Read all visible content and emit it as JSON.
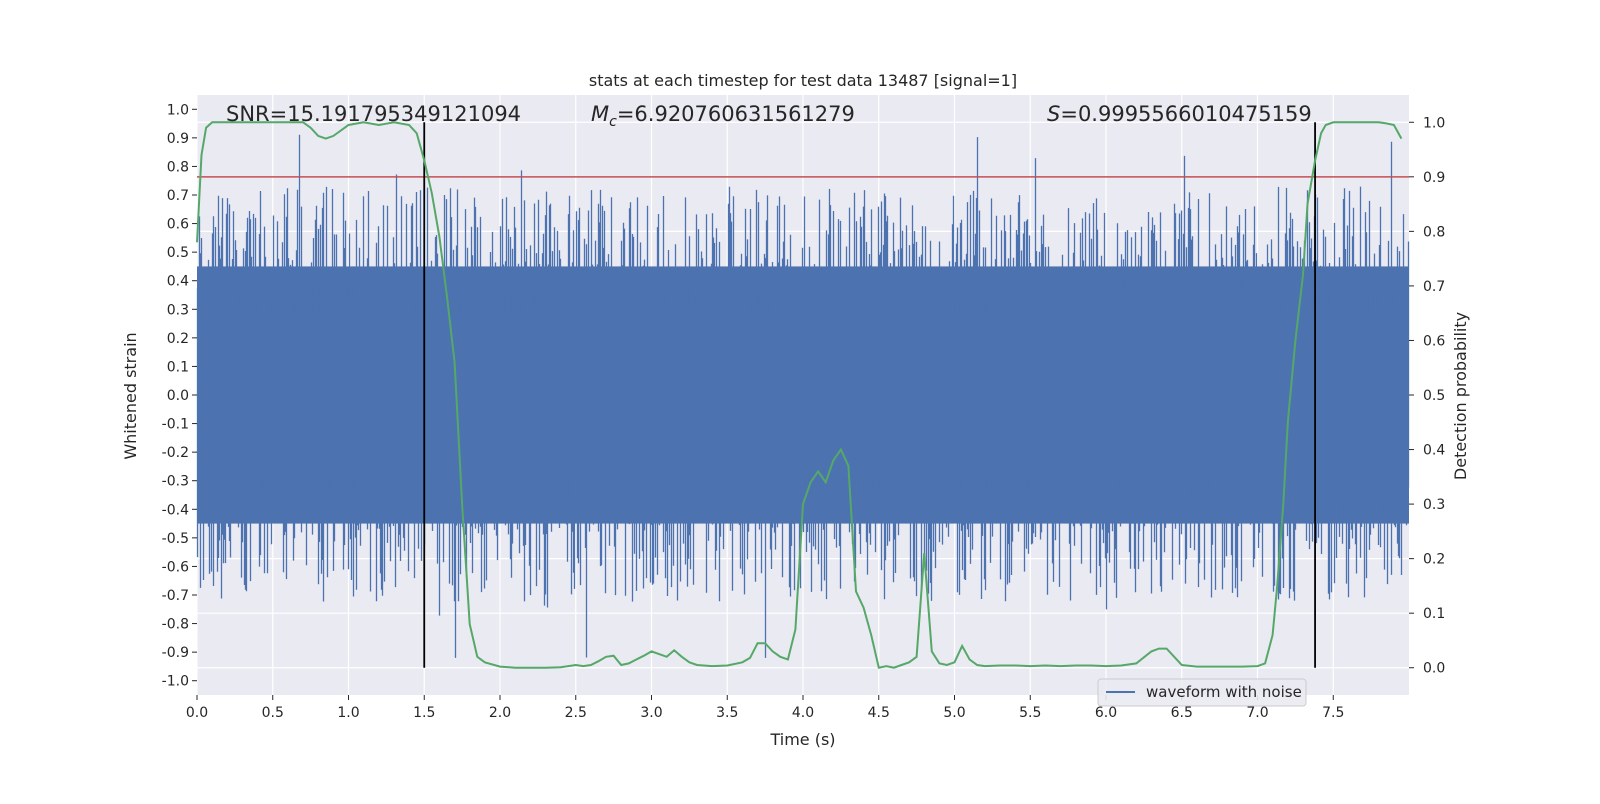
{
  "chart_data": {
    "type": "line",
    "title": "stats at each timestep for test data 13487 [signal=1]",
    "xlabel": "Time (s)",
    "ylabel": "Whitened strain",
    "y2label": "Detection probability",
    "xlim": [
      0.0,
      8.0
    ],
    "ylim": [
      -1.05,
      1.05
    ],
    "y2lim": [
      -0.05,
      1.05
    ],
    "xticks": [
      0.0,
      0.5,
      1.0,
      1.5,
      2.0,
      2.5,
      3.0,
      3.5,
      4.0,
      4.5,
      5.0,
      5.5,
      6.0,
      6.5,
      7.0,
      7.5
    ],
    "xtick_labels": [
      "0.0",
      "0.5",
      "1.0",
      "1.5",
      "2.0",
      "2.5",
      "3.0",
      "3.5",
      "4.0",
      "4.5",
      "5.0",
      "5.5",
      "6.0",
      "6.5",
      "7.0",
      "7.5"
    ],
    "yticks": [
      1.0,
      0.9,
      0.8,
      0.7,
      0.6,
      0.5,
      0.4,
      0.3,
      0.2,
      0.1,
      0.0,
      -0.1,
      -0.2,
      -0.3,
      -0.4,
      -0.5,
      -0.6,
      -0.7,
      -0.8,
      -0.9,
      -1.0
    ],
    "ytick_labels": [
      "1.0",
      "0.9",
      "0.8",
      "0.7",
      "0.6",
      "0.5",
      "0.4",
      "0.3",
      "0.2",
      "0.1",
      "0.0",
      "-0.1",
      "-0.2",
      "-0.3",
      "-0.4",
      "-0.5",
      "-0.6",
      "-0.7",
      "-0.8",
      "-0.9",
      "-1.0"
    ],
    "y2ticks": [
      1.0,
      0.9,
      0.8,
      0.7,
      0.6,
      0.5,
      0.4,
      0.3,
      0.2,
      0.1,
      0.0
    ],
    "y2tick_labels": [
      "1.0",
      "0.9",
      "0.8",
      "0.7",
      "0.6",
      "0.5",
      "0.4",
      "0.3",
      "0.2",
      "0.1",
      "0.0"
    ],
    "annotations": {
      "snr": "SNR=15.191795349121094",
      "mc_symbol": "M",
      "mc_sub": "c",
      "mc_value": "=6.920760631561279",
      "s_symbol": "S",
      "s_value": "=0.9995566010475159"
    },
    "threshold": {
      "value": 0.9,
      "axis": "y2",
      "color": "#c44e52"
    },
    "vertical_lines": [
      1.5,
      7.38
    ],
    "waveform": {
      "name": "waveform with noise",
      "color": "#4c72b0",
      "core_min": -0.45,
      "core_max": 0.45,
      "peak_min": -0.92,
      "peak_max": 1.0
    },
    "probability": {
      "color": "#55a868",
      "t": [
        0.0,
        0.03,
        0.06,
        0.1,
        0.2,
        0.3,
        0.4,
        0.5,
        0.6,
        0.7,
        0.75,
        0.8,
        0.85,
        0.9,
        1.0,
        1.1,
        1.2,
        1.3,
        1.4,
        1.45,
        1.5,
        1.55,
        1.6,
        1.65,
        1.7,
        1.75,
        1.8,
        1.85,
        1.9,
        2.0,
        2.1,
        2.2,
        2.3,
        2.4,
        2.5,
        2.55,
        2.6,
        2.65,
        2.7,
        2.75,
        2.8,
        2.85,
        2.9,
        2.95,
        3.0,
        3.05,
        3.1,
        3.15,
        3.2,
        3.25,
        3.3,
        3.4,
        3.5,
        3.6,
        3.65,
        3.7,
        3.75,
        3.8,
        3.85,
        3.9,
        3.95,
        4.0,
        4.05,
        4.1,
        4.15,
        4.2,
        4.25,
        4.3,
        4.35,
        4.4,
        4.45,
        4.5,
        4.55,
        4.6,
        4.65,
        4.7,
        4.75,
        4.8,
        4.85,
        4.9,
        4.95,
        5.0,
        5.05,
        5.1,
        5.15,
        5.2,
        5.3,
        5.4,
        5.5,
        5.6,
        5.7,
        5.8,
        5.9,
        6.0,
        6.1,
        6.2,
        6.3,
        6.35,
        6.4,
        6.45,
        6.5,
        6.6,
        6.7,
        6.8,
        6.9,
        7.0,
        7.05,
        7.1,
        7.13,
        7.17,
        7.2,
        7.25,
        7.3,
        7.33,
        7.38,
        7.42,
        7.45,
        7.5,
        7.6,
        7.7,
        7.8,
        7.85,
        7.9,
        7.95
      ],
      "p": [
        0.78,
        0.94,
        0.99,
        1.0,
        1.0,
        1.0,
        1.0,
        1.0,
        1.0,
        1.0,
        0.99,
        0.975,
        0.97,
        0.975,
        0.995,
        1.0,
        0.995,
        1.0,
        0.995,
        0.98,
        0.93,
        0.87,
        0.79,
        0.68,
        0.56,
        0.3,
        0.08,
        0.02,
        0.01,
        0.002,
        0.0,
        0.0,
        0.0,
        0.001,
        0.005,
        0.003,
        0.005,
        0.012,
        0.02,
        0.022,
        0.005,
        0.008,
        0.015,
        0.022,
        0.03,
        0.025,
        0.02,
        0.032,
        0.02,
        0.01,
        0.005,
        0.003,
        0.004,
        0.01,
        0.018,
        0.045,
        0.045,
        0.03,
        0.02,
        0.015,
        0.07,
        0.3,
        0.34,
        0.36,
        0.34,
        0.38,
        0.4,
        0.37,
        0.14,
        0.11,
        0.06,
        0.0,
        0.003,
        0.0,
        0.005,
        0.01,
        0.02,
        0.21,
        0.03,
        0.008,
        0.005,
        0.01,
        0.04,
        0.015,
        0.005,
        0.003,
        0.004,
        0.004,
        0.003,
        0.004,
        0.003,
        0.004,
        0.004,
        0.003,
        0.004,
        0.008,
        0.03,
        0.035,
        0.035,
        0.02,
        0.005,
        0.002,
        0.002,
        0.002,
        0.002,
        0.003,
        0.008,
        0.06,
        0.15,
        0.3,
        0.45,
        0.6,
        0.72,
        0.85,
        0.93,
        0.98,
        0.995,
        1.0,
        1.0,
        1.0,
        1.0,
        0.998,
        0.995,
        0.97
      ]
    },
    "legend": {
      "label": "waveform with noise",
      "position": "lower-right"
    }
  }
}
